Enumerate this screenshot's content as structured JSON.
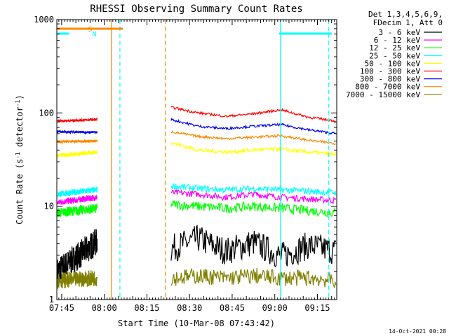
{
  "chart_data": {
    "type": "line",
    "title": "RHESSI Observing Summary Count Rates",
    "ylabel_main": "Count Rate (s",
    "ylabel_sup1": "-1",
    "ylabel_mid": " detector",
    "ylabel_sup2": "-1",
    "ylabel_end": ")",
    "xlabel": "Start Time (10-Mar-08 07:43:42)",
    "yscale": "log",
    "ylim": [
      1,
      1000
    ],
    "x_ticks": [
      "07:45",
      "08:00",
      "08:15",
      "08:30",
      "08:45",
      "09:00",
      "09:15"
    ],
    "y_ticks": [
      "1",
      "10",
      "100",
      "1000"
    ],
    "legend_header": [
      "Det 1,3,4,5,6,9,",
      "FDecim 1, Att 0"
    ],
    "series": [
      {
        "name": "3 - 6 keV",
        "color": "#000000",
        "pre": [
          2,
          4.2
        ],
        "post": [
          3.5,
          4.5,
          3.3,
          4.1,
          2.9,
          3.8,
          3.3
        ],
        "noise": 0.35
      },
      {
        "name": "6 - 12 keV",
        "color": "#ff00ff",
        "pre": [
          11,
          12.5
        ],
        "post": [
          14,
          13.5,
          12.5,
          13.5,
          12.5,
          12,
          11.5
        ],
        "noise": 0.08
      },
      {
        "name": "12 - 25 keV",
        "color": "#00ff00",
        "pre": [
          8.5,
          9.5
        ],
        "post": [
          10.5,
          10,
          9.5,
          10,
          9.5,
          9,
          8.5
        ],
        "noise": 0.12
      },
      {
        "name": "25 - 50 keV",
        "color": "#00ffff",
        "pre": [
          13.5,
          15
        ],
        "post": [
          16.5,
          15.5,
          15,
          15.5,
          15,
          14.5,
          14
        ],
        "noise": 0.08
      },
      {
        "name": "50 - 100 keV",
        "color": "#ffff00",
        "pre": [
          35,
          38
        ],
        "post": [
          48,
          40,
          38,
          40,
          41,
          38,
          36
        ],
        "noise": 0.05
      },
      {
        "name": "100 - 300 keV",
        "color": "#ff0000",
        "pre": [
          82,
          85
        ],
        "post": [
          115,
          100,
          92,
          98,
          108,
          90,
          82
        ],
        "noise": 0.03
      },
      {
        "name": "300 - 800 keV",
        "color": "#0000ff",
        "pre": [
          63,
          62
        ],
        "post": [
          85,
          72,
          68,
          72,
          75,
          66,
          60
        ],
        "noise": 0.03
      },
      {
        "name": "800 - 7000 keV",
        "color": "#ff8800",
        "pre": [
          49,
          50
        ],
        "post": [
          63,
          56,
          53,
          55,
          57,
          51,
          47
        ],
        "noise": 0.03
      },
      {
        "name": "7000 - 15000 keV",
        "color": "#808000",
        "pre": [
          1.6,
          1.7
        ],
        "post": [
          1.7,
          1.8,
          1.7,
          1.8,
          1.7,
          1.7,
          1.6
        ],
        "noise": 0.2
      }
    ],
    "flags": [
      {
        "label": "S",
        "color": "#ff8800",
        "start_min": -1.5,
        "end_min": 21.5
      },
      {
        "label": "N",
        "color": "#00ffff",
        "start_min": -1.5,
        "end_min": 2.5
      },
      {
        "label": "",
        "color": "#00ffff",
        "start_min": 76.5,
        "end_min": 95
      }
    ],
    "markers": [
      {
        "t_min": 17.5,
        "color": "#ff8800",
        "style": "solid"
      },
      {
        "t_min": 20.5,
        "color": "#00ffff",
        "style": "dashed"
      },
      {
        "t_min": 36.5,
        "color": "#ff8800",
        "style": "dashed"
      },
      {
        "t_min": 77,
        "color": "#00ffff",
        "style": "solid"
      },
      {
        "t_min": 94,
        "color": "#00ffff",
        "style": "dashed"
      }
    ],
    "data_gap_min": [
      12.5,
      38.5
    ]
  },
  "timestamp": "14-Oct-2021 00:28"
}
